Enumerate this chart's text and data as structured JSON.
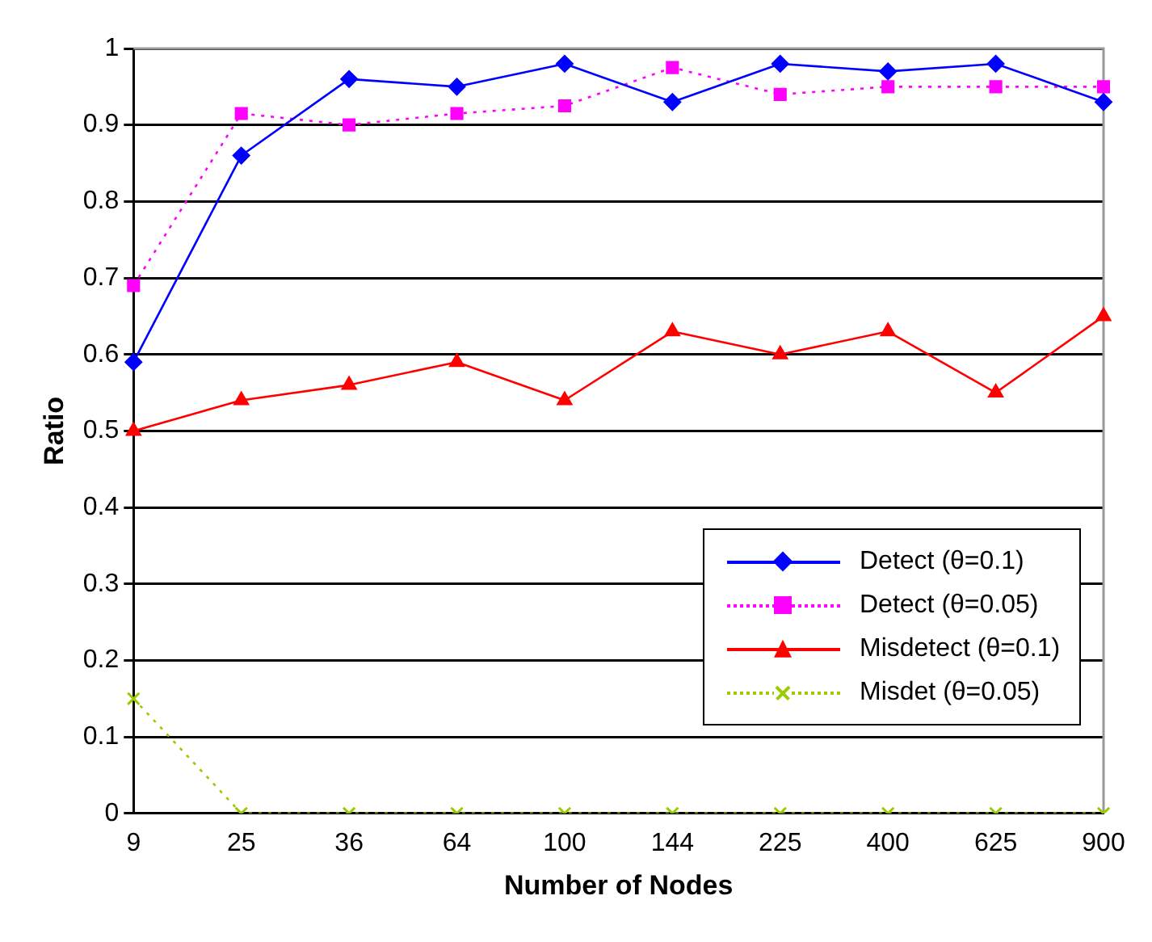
{
  "chart_data": {
    "type": "line",
    "xlabel": "Number of Nodes",
    "ylabel": "Ratio",
    "categories": [
      "9",
      "25",
      "36",
      "64",
      "100",
      "144",
      "225",
      "400",
      "625",
      "900"
    ],
    "ylim": [
      0,
      1
    ],
    "yticks": [
      0,
      0.1,
      0.2,
      0.3,
      0.4,
      0.5,
      0.6,
      0.7,
      0.8,
      0.9,
      1
    ],
    "grid": "y",
    "legend": "bottom right",
    "series": [
      {
        "name": "Detect (θ=0.1)",
        "color": "#0000ff",
        "marker": "diamond",
        "line_style": "solid",
        "values": [
          0.59,
          0.86,
          0.96,
          0.95,
          0.98,
          0.93,
          0.98,
          0.97,
          0.98,
          0.93
        ]
      },
      {
        "name": "Detect (θ=0.05)",
        "color": "#ff00ff",
        "marker": "square",
        "line_style": "dotted",
        "values": [
          0.69,
          0.915,
          0.9,
          0.915,
          0.925,
          0.975,
          0.94,
          0.95,
          0.95,
          0.95
        ]
      },
      {
        "name": "Misdetect (θ=0.1)",
        "color": "#ff0000",
        "marker": "triangle",
        "line_style": "solid",
        "values": [
          0.5,
          0.54,
          0.56,
          0.59,
          0.54,
          0.63,
          0.6,
          0.63,
          0.55,
          0.65
        ]
      },
      {
        "name": "Misdet (θ=0.05)",
        "color": "#99cc00",
        "marker": "cross",
        "line_style": "dotted",
        "values": [
          0.15,
          0,
          0,
          0,
          0,
          0,
          0,
          0,
          0,
          0
        ]
      }
    ]
  }
}
